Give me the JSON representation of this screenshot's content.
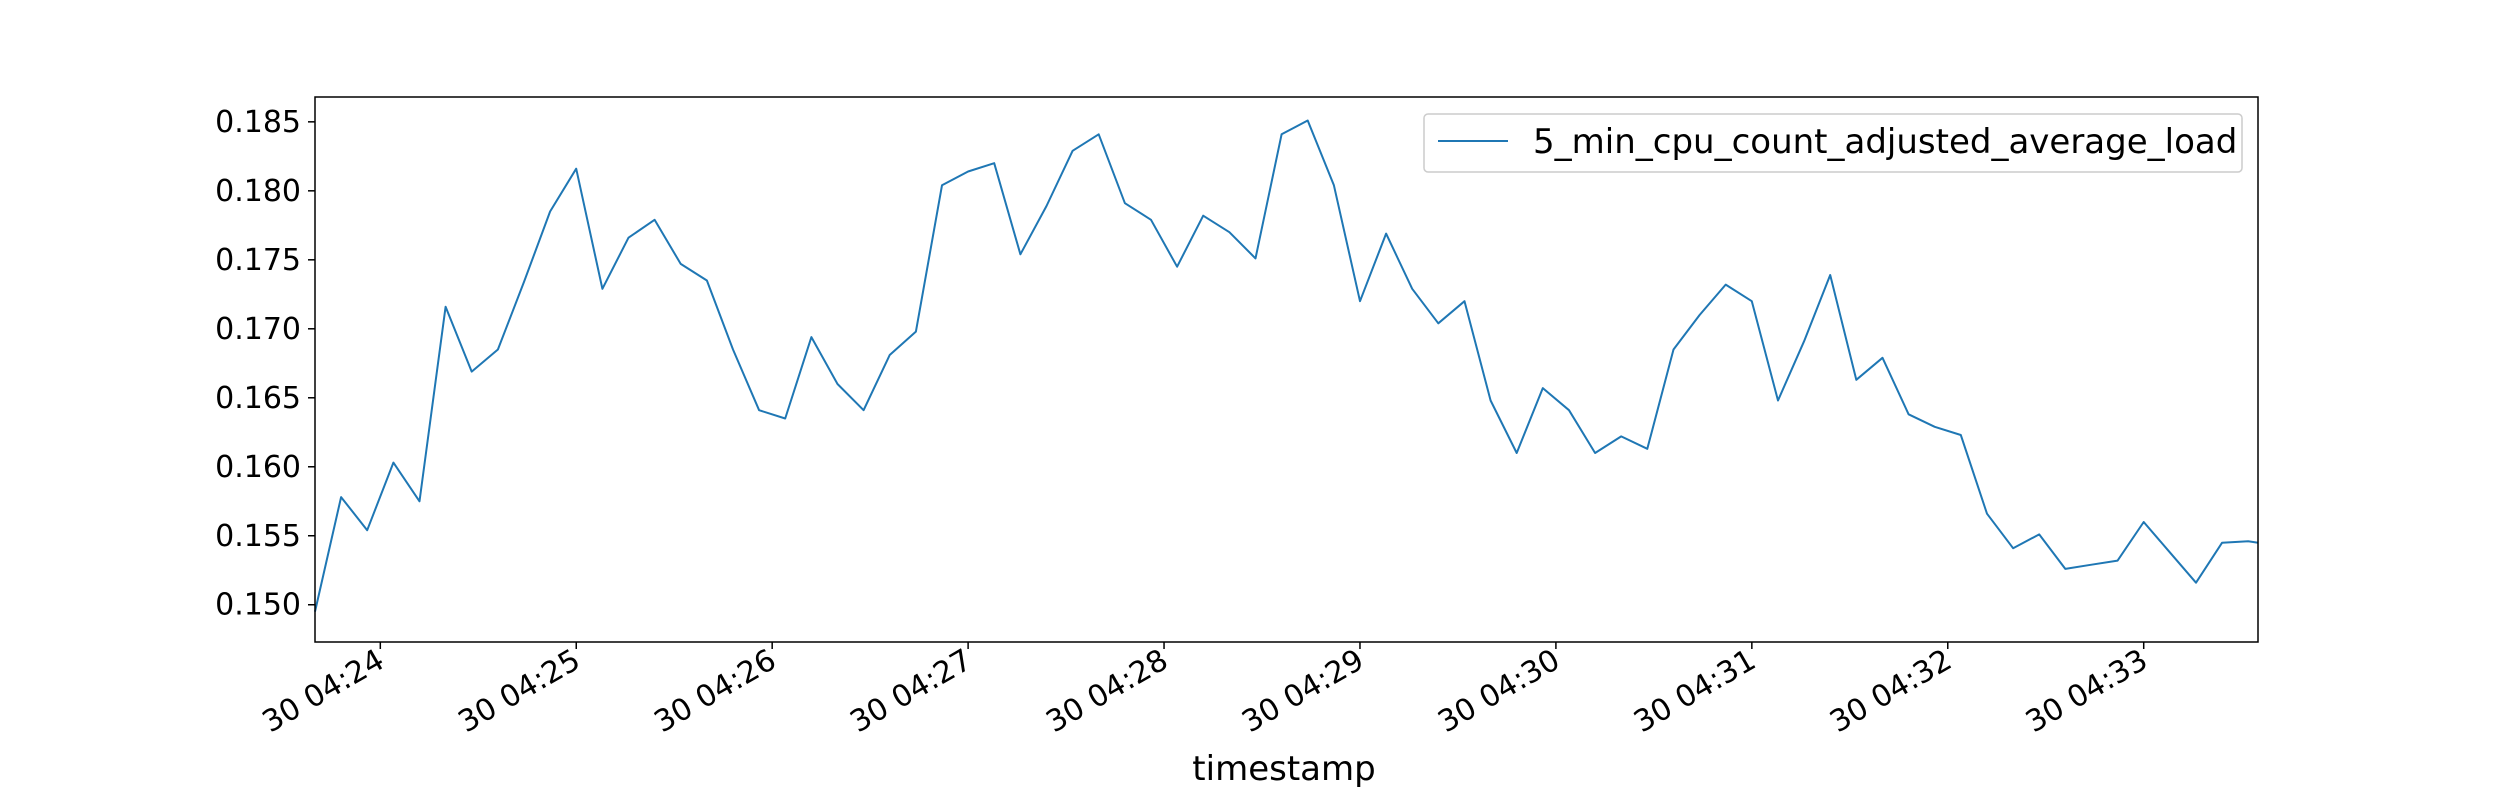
{
  "chart_data": {
    "type": "line",
    "title": "",
    "xlabel": "timestamp",
    "ylabel": "",
    "x_tick_labels": [
      "30 04:24",
      "30 04:25",
      "30 04:26",
      "30 04:27",
      "30 04:28",
      "30 04:29",
      "30 04:30",
      "30 04:31",
      "30 04:32",
      "30 04:33"
    ],
    "x_tick_times": [
      "04:24:00",
      "04:25:00",
      "04:26:00",
      "04:27:00",
      "04:28:00",
      "04:29:00",
      "04:30:00",
      "04:31:00",
      "04:32:00",
      "04:33:00"
    ],
    "y_ticks": [
      0.15,
      0.155,
      0.16,
      0.165,
      0.17,
      0.175,
      0.18,
      0.185
    ],
    "y_tick_labels": [
      "0.150",
      "0.155",
      "0.160",
      "0.165",
      "0.170",
      "0.175",
      "0.180",
      "0.185"
    ],
    "xlim": [
      "04:23:40",
      "04:33:35"
    ],
    "ylim": [
      0.1473,
      0.1868
    ],
    "grid": false,
    "legend_position": "top-right",
    "color": "#1f77b4",
    "series": [
      {
        "name": "5_min_cpu_count_adjusted_average_load",
        "x": [
          "04:23:40",
          "04:23:48",
          "04:23:56",
          "04:24:04",
          "04:24:12",
          "04:24:20",
          "04:24:28",
          "04:24:36",
          "04:24:44",
          "04:24:52",
          "04:25:00",
          "04:25:08",
          "04:25:16",
          "04:25:24",
          "04:25:32",
          "04:25:40",
          "04:25:48",
          "04:25:56",
          "04:26:04",
          "04:26:12",
          "04:26:20",
          "04:26:28",
          "04:26:36",
          "04:26:44",
          "04:26:52",
          "04:27:00",
          "04:27:08",
          "04:27:16",
          "04:27:24",
          "04:27:32",
          "04:27:40",
          "04:27:48",
          "04:27:56",
          "04:28:04",
          "04:28:12",
          "04:28:20",
          "04:28:28",
          "04:28:36",
          "04:28:44",
          "04:28:52",
          "04:29:00",
          "04:29:08",
          "04:29:16",
          "04:29:24",
          "04:29:32",
          "04:29:40",
          "04:29:48",
          "04:29:56",
          "04:30:04",
          "04:30:12",
          "04:30:20",
          "04:30:28",
          "04:30:36",
          "04:30:44",
          "04:30:52",
          "04:31:00",
          "04:31:08",
          "04:31:16",
          "04:31:24",
          "04:31:32",
          "04:31:40",
          "04:31:48",
          "04:31:56",
          "04:32:04",
          "04:32:12",
          "04:32:20",
          "04:32:28",
          "04:32:36",
          "04:32:44",
          "04:32:52",
          "04:33:00",
          "04:33:08",
          "04:33:16",
          "04:33:24",
          "04:33:32",
          "04:33:35"
        ],
        "y": [
          0.1495,
          0.1578,
          0.1554,
          0.1603,
          0.1575,
          0.1716,
          0.1669,
          0.1685,
          0.1734,
          0.1785,
          0.1816,
          0.1729,
          0.1766,
          0.1779,
          0.1747,
          0.1735,
          0.1685,
          0.1641,
          0.1635,
          0.1694,
          0.166,
          0.1641,
          0.1681,
          0.1698,
          0.1804,
          0.1814,
          0.182,
          0.1754,
          0.1789,
          0.1829,
          0.1841,
          0.1791,
          0.1779,
          0.1745,
          0.1782,
          0.177,
          0.1751,
          0.1841,
          0.1851,
          0.1804,
          0.172,
          0.1769,
          0.1729,
          0.1704,
          0.172,
          0.1648,
          0.161,
          0.1657,
          0.1641,
          0.161,
          0.1622,
          0.1613,
          0.1685,
          0.171,
          0.1732,
          0.172,
          0.1648,
          0.1691,
          0.1739,
          0.1663,
          0.1679,
          0.1638,
          0.1629,
          0.1623,
          0.1566,
          0.1541,
          0.1551,
          0.1526,
          0.1529,
          0.1532,
          0.156,
          0.1538,
          0.1516,
          0.1545,
          0.1546,
          0.1545
        ]
      }
    ]
  }
}
